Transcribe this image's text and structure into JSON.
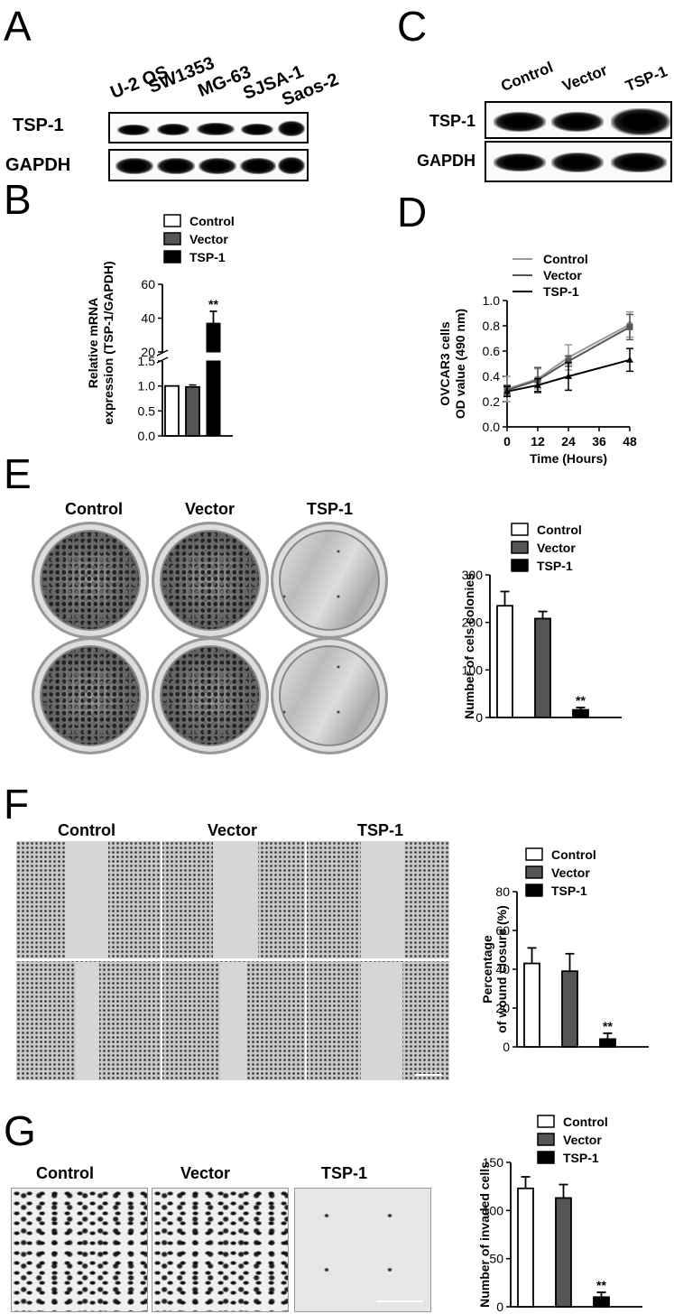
{
  "panels": {
    "A": {
      "letter": "A",
      "lanes": [
        "U-2 OS",
        "SW1353",
        "MG-63",
        "SJSA-1",
        "Saos-2"
      ],
      "rows": [
        "TSP-1",
        "GAPDH"
      ]
    },
    "C": {
      "letter": "C",
      "lanes": [
        "Control",
        "Vector",
        "TSP-1"
      ],
      "rows": [
        "TSP-1",
        "GAPDH"
      ]
    },
    "E": {
      "letter": "E",
      "columns": [
        "Control",
        "Vector",
        "TSP-1"
      ]
    },
    "F": {
      "letter": "F",
      "columns": [
        "Control",
        "Vector",
        "TSP-1"
      ]
    },
    "G": {
      "letter": "G",
      "columns": [
        "Control",
        "Vector",
        "TSP-1"
      ]
    }
  },
  "chart_data": [
    {
      "panel": "B",
      "type": "bar",
      "categories": [
        "Control",
        "Vector",
        "TSP-1"
      ],
      "series": [
        {
          "name": "",
          "values": [
            1.0,
            0.98,
            37
          ]
        }
      ],
      "errors": [
        0,
        0.04,
        7
      ],
      "legend": [
        "Control",
        "Vector",
        "TSP-1"
      ],
      "ylabel": "Relative mRNA\nexpression (TSP-1/GAPDH)",
      "ylabel_lines": [
        "Relative mRNA",
        "expression (TSP-1/GAPDH)"
      ],
      "broken_axis": true,
      "lower_ticks": [
        "0.0",
        "0.5",
        "1.0",
        "1.5"
      ],
      "upper_ticks": [
        "20",
        "40",
        "60"
      ],
      "significance": "**",
      "colors": [
        "#ffffff",
        "#555555",
        "#000000"
      ]
    },
    {
      "panel": "D",
      "type": "line",
      "x": [
        0,
        12,
        24,
        48
      ],
      "series": [
        {
          "name": "Control",
          "values": [
            0.3,
            0.38,
            0.55,
            0.81
          ],
          "errors": [
            0.1,
            0.08,
            0.1,
            0.1
          ],
          "color": "#999999",
          "marker": "circle"
        },
        {
          "name": "Vector",
          "values": [
            0.29,
            0.37,
            0.52,
            0.79
          ],
          "errors": [
            0.04,
            0.1,
            0.04,
            0.1
          ],
          "color": "#555555",
          "marker": "square"
        },
        {
          "name": "TSP-1",
          "values": [
            0.28,
            0.33,
            0.4,
            0.53
          ],
          "errors": [
            0.04,
            0.05,
            0.11,
            0.09
          ],
          "color": "#000000",
          "marker": "triangle"
        }
      ],
      "xlabel": "Time  (Hours)",
      "ylabel_lines": [
        "OVCAR3 cells",
        "OD value (490 nm)"
      ],
      "xticks": [
        "0",
        "12",
        "24",
        "36",
        "48"
      ],
      "yticks": [
        "0.0",
        "0.2",
        "0.4",
        "0.6",
        "0.8",
        "1.0"
      ],
      "xlim": [
        0,
        48
      ],
      "ylim": [
        0,
        1.0
      ]
    },
    {
      "panel": "E",
      "type": "bar",
      "categories": [
        "Control",
        "Vector",
        "TSP-1"
      ],
      "series": [
        {
          "name": "",
          "values": [
            235,
            208,
            16
          ]
        }
      ],
      "errors": [
        30,
        15,
        5
      ],
      "legend": [
        "Control",
        "Vector",
        "TSP-1"
      ],
      "ylabel_lines": [
        "Number of cels colonies"
      ],
      "yticks": [
        "0",
        "100",
        "200",
        "300"
      ],
      "ylim": [
        0,
        300
      ],
      "significance": "**",
      "colors": [
        "#ffffff",
        "#555555",
        "#000000"
      ]
    },
    {
      "panel": "F",
      "type": "bar",
      "categories": [
        "Control",
        "Vector",
        "TSP-1"
      ],
      "series": [
        {
          "name": "",
          "values": [
            43,
            39,
            4
          ]
        }
      ],
      "errors": [
        8,
        9,
        3
      ],
      "legend": [
        "Control",
        "Vector",
        "TSP-1"
      ],
      "ylabel_lines": [
        "Percentage",
        "of wound closure (%)"
      ],
      "yticks": [
        "0",
        "20",
        "40",
        "60",
        "80"
      ],
      "ylim": [
        0,
        80
      ],
      "significance": "**",
      "colors": [
        "#ffffff",
        "#555555",
        "#000000"
      ]
    },
    {
      "panel": "G",
      "type": "bar",
      "categories": [
        "Control",
        "Vector",
        "TSP-1"
      ],
      "series": [
        {
          "name": "",
          "values": [
            123,
            113,
            10
          ]
        }
      ],
      "errors": [
        12,
        14,
        5
      ],
      "legend": [
        "Control",
        "Vector",
        "TSP-1"
      ],
      "ylabel_lines": [
        "Number of invaded cells"
      ],
      "yticks": [
        "0",
        "50",
        "100",
        "150"
      ],
      "ylim": [
        0,
        150
      ],
      "significance": "**",
      "colors": [
        "#ffffff",
        "#555555",
        "#000000"
      ]
    }
  ]
}
